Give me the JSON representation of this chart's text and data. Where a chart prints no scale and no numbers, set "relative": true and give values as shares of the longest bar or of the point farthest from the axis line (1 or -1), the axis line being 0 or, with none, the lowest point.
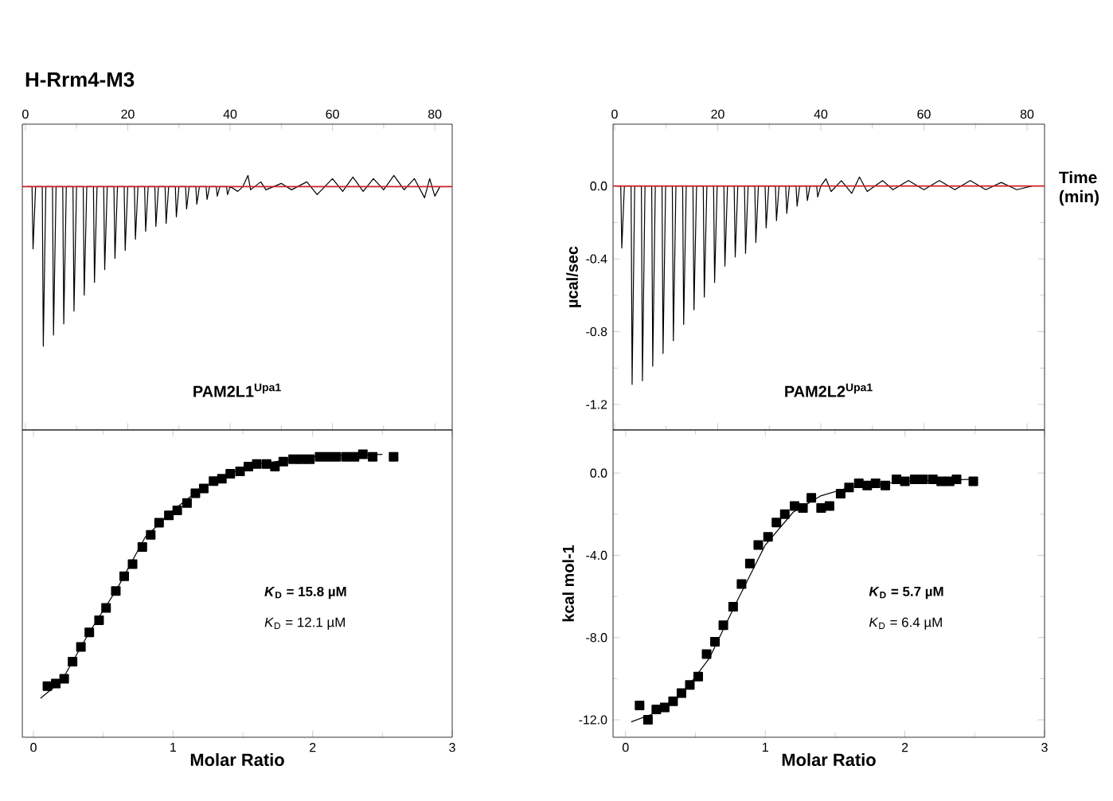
{
  "chart_data": [
    {
      "type": "line",
      "title": "H-Rrm4-M3",
      "relative": true,
      "xlim": [
        -0.6,
        83.4
      ],
      "xticks": [
        0,
        20,
        40,
        60,
        80
      ],
      "series": [
        {
          "color": "#000000",
          "x": [
            0.5,
            1.3,
            1.5,
            2.0,
            3.3,
            3.5,
            4.0,
            5.3,
            5.5,
            6.0,
            7.3,
            7.5,
            8.0,
            9.3,
            9.5,
            10.0,
            11.3,
            11.5,
            12.0,
            13.3,
            13.5,
            14.0,
            15.3,
            15.5,
            16.0,
            17.3,
            17.5,
            18.0,
            19.3,
            19.5,
            20.0,
            21.3,
            21.5,
            22.0,
            23.3,
            23.5,
            24.0,
            25.3,
            25.5,
            26.0,
            27.3,
            27.5,
            28.0,
            29.3,
            29.5,
            30.0,
            31.3,
            31.5,
            32.0,
            33.3,
            33.5,
            34.0,
            35.3,
            35.5,
            36.0,
            37.3,
            37.5,
            38.0,
            39.3,
            39.5,
            40.0,
            41.5,
            42.5,
            43.5,
            44.0,
            46,
            47,
            50,
            52,
            55,
            57,
            60,
            62,
            64,
            66,
            68,
            70,
            72,
            74,
            76,
            78,
            79,
            80,
            81
          ],
          "values": [
            0,
            0,
            -0.39,
            0,
            0,
            -1,
            0,
            0,
            -0.93,
            0,
            0,
            -0.86,
            0,
            0,
            -0.78,
            0,
            0,
            -0.68,
            0,
            0,
            -0.6,
            0,
            0,
            -0.52,
            0,
            0,
            -0.45,
            0,
            0,
            -0.4,
            0,
            0,
            -0.33,
            0,
            0,
            -0.28,
            0,
            0,
            -0.25,
            0,
            0,
            -0.23,
            0,
            0,
            -0.19,
            0,
            0,
            -0.14,
            0,
            0,
            -0.11,
            0,
            0,
            -0.08,
            0,
            0,
            -0.06,
            0,
            0,
            -0.05,
            0,
            -0.03,
            0,
            0.07,
            -0.02,
            0.03,
            -0.02,
            0.02,
            -0.02,
            0.03,
            -0.05,
            0.05,
            -0.03,
            0.06,
            -0.03,
            0.05,
            -0.02,
            0.07,
            -0.02,
            0.05,
            -0.07,
            0.05,
            -0.06,
            0
          ]
        }
      ],
      "ref_lines": [
        {
          "axis": "y",
          "value": 0,
          "color": "#cc2222"
        }
      ],
      "annotations": [
        "PAM2L1$^{Upa1}$"
      ]
    },
    {
      "type": "line",
      "xlabel": "Time (min)",
      "ylabel": "µcal/sec",
      "xlim": [
        -0.3,
        83.4
      ],
      "xticks": [
        0,
        20,
        40,
        60,
        80
      ],
      "ylim": [
        -1.34,
        0.34
      ],
      "yticks": [
        {
          "value": 0,
          "label": "0.0"
        },
        {
          "value": -0.4,
          "label": "-0.4"
        },
        {
          "value": -0.8,
          "label": "-0.8"
        },
        {
          "value": -1.2,
          "label": "-1.2"
        }
      ],
      "series": [
        {
          "color": "#000000",
          "x": [
            0.5,
            1.2,
            1.4,
            1.9,
            3.2,
            3.4,
            3.9,
            5.2,
            5.4,
            5.9,
            7.2,
            7.4,
            7.9,
            9.2,
            9.4,
            9.9,
            11.2,
            11.4,
            11.9,
            13.2,
            13.4,
            13.9,
            15.2,
            15.4,
            15.9,
            17.2,
            17.4,
            17.9,
            19.2,
            19.4,
            19.9,
            21.2,
            21.4,
            21.9,
            23.2,
            23.4,
            23.9,
            25.2,
            25.4,
            25.9,
            27.2,
            27.4,
            27.9,
            29.2,
            29.4,
            29.9,
            31.2,
            31.4,
            31.9,
            33.2,
            33.4,
            33.9,
            35.2,
            35.4,
            35.9,
            37.2,
            37.4,
            37.9,
            39.2,
            39.4,
            40,
            41,
            42,
            44,
            46,
            47.5,
            49,
            52,
            54,
            57,
            60,
            63,
            66,
            69,
            72,
            75,
            78,
            81
          ],
          "values": [
            0,
            0,
            -0.34,
            0,
            0,
            -1.09,
            0,
            0,
            -1.07,
            0,
            0,
            -0.99,
            0,
            0,
            -0.92,
            0,
            0,
            -0.85,
            0,
            0,
            -0.76,
            0,
            0,
            -0.68,
            0,
            0,
            -0.61,
            0,
            0,
            -0.53,
            0,
            0,
            -0.44,
            0,
            0,
            -0.39,
            0,
            0,
            -0.37,
            0,
            0,
            -0.31,
            0,
            0,
            -0.23,
            0,
            0,
            -0.19,
            0,
            0,
            -0.15,
            0,
            0,
            -0.11,
            0,
            0,
            -0.08,
            0,
            0,
            -0.06,
            0,
            0.04,
            -0.03,
            0.03,
            -0.04,
            0.05,
            -0.03,
            0.03,
            -0.02,
            0.03,
            -0.02,
            0.03,
            -0.02,
            0.03,
            -0.02,
            0.02,
            -0.02,
            0
          ]
        }
      ],
      "ref_lines": [
        {
          "axis": "y",
          "value": 0,
          "color": "#cc2222"
        }
      ],
      "annotations": [
        "PAM2L2$^{Upa1}$"
      ]
    },
    {
      "type": "scatter",
      "relative": true,
      "xlabel": "Molar Ratio",
      "xlim": [
        -0.08,
        3
      ],
      "xticks": [
        0,
        1,
        2,
        3
      ],
      "series": [
        {
          "type": "scatter",
          "marker": "square",
          "color": "#000000",
          "x": [
            0.1,
            0.16,
            0.22,
            0.28,
            0.34,
            0.4,
            0.47,
            0.52,
            0.59,
            0.65,
            0.71,
            0.78,
            0.84,
            0.9,
            0.97,
            1.03,
            1.1,
            1.16,
            1.22,
            1.29,
            1.35,
            1.41,
            1.48,
            1.54,
            1.6,
            1.67,
            1.73,
            1.79,
            1.86,
            1.92,
            1.98,
            2.05,
            2.11,
            2.17,
            2.24,
            2.3,
            2.36,
            2.43,
            2.58
          ],
          "values": [
            0.05,
            0.06,
            0.08,
            0.15,
            0.21,
            0.27,
            0.32,
            0.37,
            0.44,
            0.5,
            0.55,
            0.62,
            0.67,
            0.72,
            0.75,
            0.77,
            0.8,
            0.84,
            0.86,
            0.89,
            0.9,
            0.92,
            0.93,
            0.95,
            0.96,
            0.96,
            0.95,
            0.97,
            0.98,
            0.98,
            0.98,
            0.99,
            0.99,
            0.99,
            0.99,
            0.99,
            1.0,
            0.99,
            0.99
          ]
        },
        {
          "type": "line",
          "color": "#000000",
          "x": [
            0.05,
            0.2,
            0.4,
            0.6,
            0.8,
            1.0,
            1.2,
            1.4,
            1.6,
            2.0,
            2.5
          ],
          "values": [
            0,
            0.07,
            0.27,
            0.45,
            0.66,
            0.77,
            0.86,
            0.92,
            0.96,
            0.99,
            1.0
          ]
        }
      ],
      "annotations": [
        "*K*$_{D}$ = 15.8 µM",
        "*K*$_{D}$ = 12.1 µM"
      ]
    },
    {
      "type": "scatter",
      "xlabel": "Molar Ratio",
      "ylabel": "kcal mol-1",
      "xlim": [
        -0.09,
        3
      ],
      "xticks": [
        0,
        1,
        2,
        3
      ],
      "ylim": [
        -12.85,
        2.1
      ],
      "yticks": [
        {
          "value": 0,
          "label": "0.0"
        },
        {
          "value": -4,
          "label": "-4.0"
        },
        {
          "value": -8,
          "label": "-8.0"
        },
        {
          "value": -12,
          "label": "-12.0"
        }
      ],
      "series": [
        {
          "type": "scatter",
          "marker": "square",
          "color": "#000000",
          "x": [
            0.1,
            0.16,
            0.22,
            0.28,
            0.34,
            0.4,
            0.46,
            0.52,
            0.58,
            0.64,
            0.7,
            0.77,
            0.83,
            0.89,
            0.95,
            1.02,
            1.08,
            1.14,
            1.21,
            1.27,
            1.33,
            1.4,
            1.46,
            1.54,
            1.6,
            1.67,
            1.73,
            1.79,
            1.86,
            1.94,
            2.0,
            2.07,
            2.13,
            2.2,
            2.26,
            2.32,
            2.37,
            2.49
          ],
          "values": [
            -11.3,
            -12.0,
            -11.5,
            -11.4,
            -11.1,
            -10.7,
            -10.3,
            -9.9,
            -8.8,
            -8.2,
            -7.4,
            -6.5,
            -5.4,
            -4.4,
            -3.5,
            -3.1,
            -2.4,
            -2.0,
            -1.6,
            -1.7,
            -1.2,
            -1.7,
            -1.6,
            -1.0,
            -0.7,
            -0.5,
            -0.6,
            -0.5,
            -0.6,
            -0.3,
            -0.4,
            -0.3,
            -0.3,
            -0.3,
            -0.4,
            -0.4,
            -0.3,
            -0.4
          ]
        },
        {
          "type": "line",
          "color": "#000000",
          "x": [
            0.04,
            0.2,
            0.4,
            0.6,
            0.8,
            1.0,
            1.2,
            1.4,
            1.6,
            2.0,
            2.5
          ],
          "values": [
            -12.1,
            -11.7,
            -10.8,
            -9.0,
            -6.2,
            -3.5,
            -1.9,
            -1.1,
            -0.7,
            -0.4,
            -0.3
          ]
        }
      ],
      "annotations": [
        "*K*$_{D}$ = 5.7 µM",
        "*K*$_{D}$ = 6.4 µM"
      ]
    }
  ]
}
